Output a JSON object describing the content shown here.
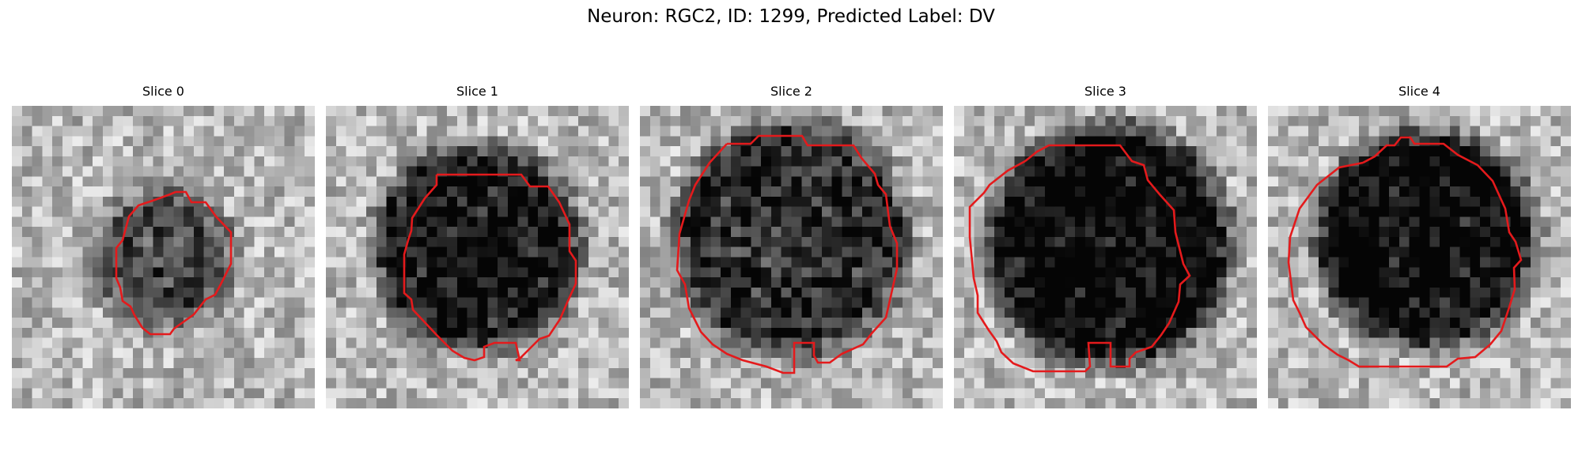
{
  "figure": {
    "title": "Neuron: RGC2, ID: 1299, Predicted Label: DV"
  },
  "panels": [
    {
      "title": "Slice 0",
      "cell_radius": 0.23,
      "cell_darkness": 0.42,
      "cell_cx": 0.5,
      "cell_cy": 0.5
    },
    {
      "title": "Slice 1",
      "cell_radius": 0.34,
      "cell_darkness": 0.65,
      "cell_cx": 0.5,
      "cell_cy": 0.47
    },
    {
      "title": "Slice 2",
      "cell_radius": 0.39,
      "cell_darkness": 0.55,
      "cell_cx": 0.5,
      "cell_cy": 0.44
    },
    {
      "title": "Slice 3",
      "cell_radius": 0.4,
      "cell_darkness": 0.72,
      "cell_cx": 0.51,
      "cell_cy": 0.46
    },
    {
      "title": "Slice 4",
      "cell_radius": 0.36,
      "cell_darkness": 0.7,
      "cell_cx": 0.52,
      "cell_cy": 0.44
    }
  ],
  "colors": {
    "contour": "#e41a1c"
  }
}
